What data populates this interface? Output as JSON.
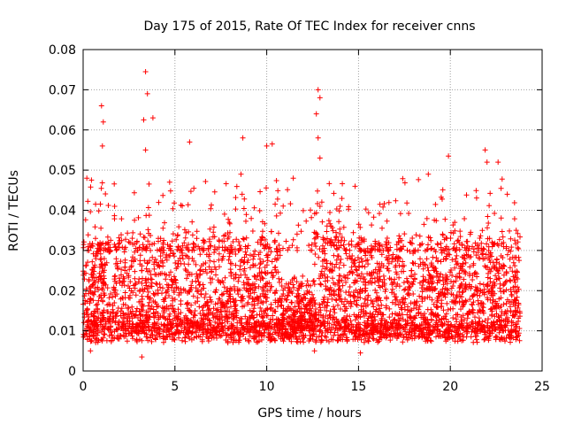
{
  "chart_data": {
    "type": "scatter",
    "title": "Day 175 of 2015, Rate Of TEC Index for receiver cnns",
    "xlabel": "GPS time / hours",
    "ylabel": "ROTI / TECUs",
    "xlim": [
      0,
      25
    ],
    "ylim": [
      0,
      0.08
    ],
    "x_ticks": [
      0,
      5,
      10,
      15,
      20,
      25
    ],
    "x_tick_labels": [
      "0",
      "5",
      "10",
      "15",
      "20",
      "25"
    ],
    "y_ticks": [
      0,
      0.01,
      0.02,
      0.03,
      0.04,
      0.05,
      0.06,
      0.07,
      0.08
    ],
    "y_tick_labels": [
      "0",
      "0.01",
      "0.02",
      "0.03",
      "0.04",
      "0.05",
      "0.06",
      "0.07",
      "0.08"
    ],
    "grid": true,
    "marker": "+",
    "color": "#ff0000",
    "series": [
      {
        "name": "ROTI",
        "x_range": [
          0,
          23.8
        ],
        "typical_range": [
          0.005,
          0.03
        ],
        "peaks": [
          {
            "x": 0.2,
            "y": 0.048
          },
          {
            "x": 1.0,
            "y": 0.066
          },
          {
            "x": 1.1,
            "y": 0.062
          },
          {
            "x": 1.05,
            "y": 0.056
          },
          {
            "x": 3.4,
            "y": 0.0745
          },
          {
            "x": 3.5,
            "y": 0.069
          },
          {
            "x": 3.3,
            "y": 0.0625
          },
          {
            "x": 3.8,
            "y": 0.063
          },
          {
            "x": 3.4,
            "y": 0.055
          },
          {
            "x": 5.8,
            "y": 0.057
          },
          {
            "x": 8.7,
            "y": 0.058
          },
          {
            "x": 8.6,
            "y": 0.049
          },
          {
            "x": 10.0,
            "y": 0.056
          },
          {
            "x": 10.3,
            "y": 0.0565
          },
          {
            "x": 12.8,
            "y": 0.07
          },
          {
            "x": 12.9,
            "y": 0.068
          },
          {
            "x": 12.7,
            "y": 0.064
          },
          {
            "x": 12.8,
            "y": 0.058
          },
          {
            "x": 12.9,
            "y": 0.053
          },
          {
            "x": 12.9,
            "y": 0.041
          },
          {
            "x": 19.9,
            "y": 0.0535
          },
          {
            "x": 18.8,
            "y": 0.049
          },
          {
            "x": 21.9,
            "y": 0.055
          },
          {
            "x": 22.0,
            "y": 0.052
          },
          {
            "x": 22.6,
            "y": 0.052
          },
          {
            "x": 23.1,
            "y": 0.044
          }
        ],
        "minima": [
          {
            "x": 3.2,
            "y": 0.0035
          },
          {
            "x": 0.4,
            "y": 0.005
          },
          {
            "x": 15.1,
            "y": 0.0045
          },
          {
            "x": 12.6,
            "y": 0.005
          }
        ]
      }
    ]
  }
}
